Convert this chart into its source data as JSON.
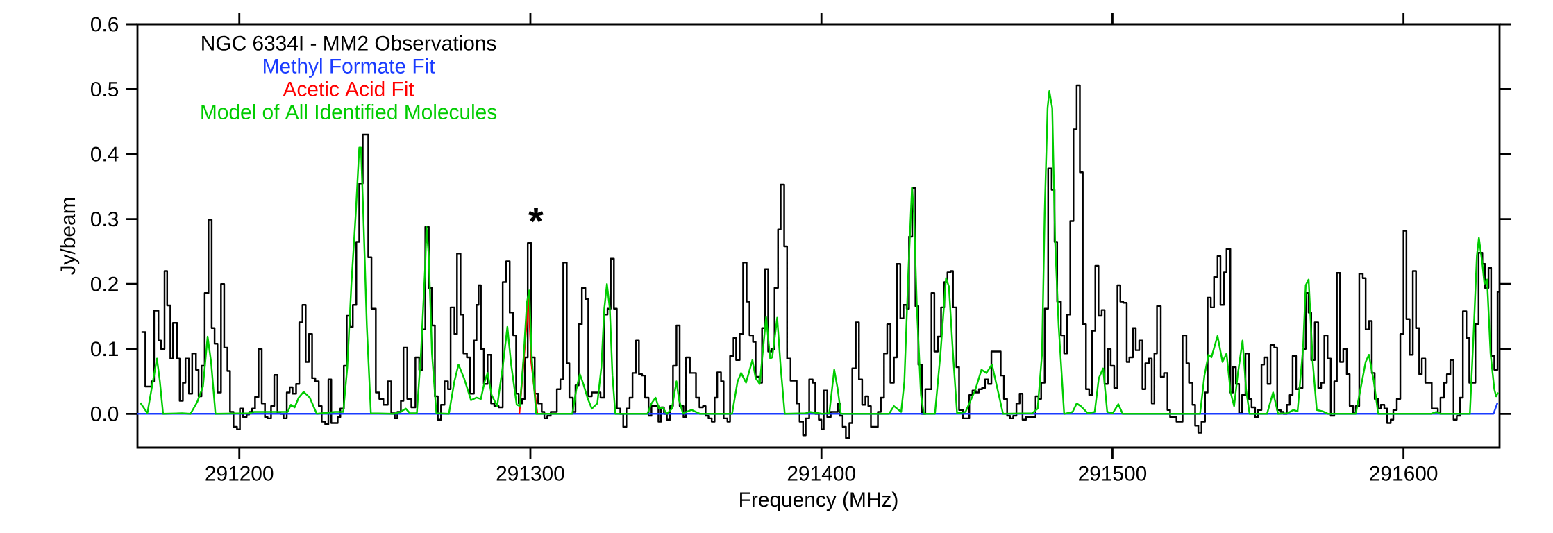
{
  "chart_data": {
    "type": "line",
    "xlabel": "Frequency (MHz)",
    "ylabel": "Jy/beam",
    "xlim": [
      291165,
      291633
    ],
    "ylim": [
      -0.052,
      0.6
    ],
    "xticks": [
      291200,
      291300,
      291400,
      291500,
      291600
    ],
    "yticks": [
      {
        "value": 0,
        "label": "0.0"
      },
      {
        "value": 0.1,
        "label": "0.1"
      },
      {
        "value": 0.2,
        "label": "0.2"
      },
      {
        "value": 0.3,
        "label": "0.3"
      },
      {
        "value": 0.4,
        "label": "0.4"
      },
      {
        "value": 0.5,
        "label": "0.5"
      },
      {
        "value": 0.6,
        "label": "0.6"
      }
    ],
    "legend": "top left",
    "annotations": [
      "*"
    ],
    "series": [
      {
        "name": "NGC 6334I - MM2 Observations",
        "color": "#000000",
        "type": "step",
        "x": [
          291166.4,
          291167.7,
          291169.8,
          291170.7,
          291172.2,
          291173.1,
          291174.3,
          291175.2,
          291176.3,
          291177.2,
          291178.6,
          291179.5,
          291180.6,
          291181.5,
          291182.7,
          291183.8,
          291185.1,
          291186.0,
          291187.0,
          291188.1,
          291189.4,
          291190.5,
          291191.5,
          291192.5,
          291193.7,
          291194.8,
          291195.9,
          291196.8,
          291198.0,
          291199.2,
          291200.2,
          291201.3,
          291202.5,
          291203.4,
          291204.4,
          291205.4,
          291206.6,
          291207.7,
          291208.8,
          291209.7,
          291210.9,
          291212.0,
          291213.1,
          291214.2,
          291215.2,
          291216.3,
          291217.3,
          291218.3,
          291219.5,
          291220.6,
          291221.7,
          291222.8,
          291223.9,
          291225.0,
          291226.1,
          291227.3,
          291228.3,
          291229.5,
          291230.6,
          291231.6,
          291233.8,
          291234.7,
          291235.9,
          291236.9,
          291238.1,
          291239.0,
          291240.2,
          291241.2,
          291242.4,
          291244.3,
          291245.4,
          291246.9,
          291248.1,
          291249.5,
          291251.0,
          291252.2,
          291253.4,
          291254.3,
          291255.5,
          291256.4,
          291257.7,
          291259.1,
          291260.5,
          291261.8,
          291262.9,
          291263.9,
          291265.1,
          291266.1,
          291267.2,
          291268.2,
          291269.3,
          291270.5,
          291271.7,
          291272.6,
          291273.9,
          291274.8,
          291276.0,
          291277.0,
          291278.2,
          291279.3,
          291280.6,
          291281.5,
          291282.2,
          291283.0,
          291284.0,
          291285.3,
          291286.5,
          291287.6,
          291289.1,
          291290.5,
          291291.7,
          291292.9,
          291294.1,
          291295.1,
          291296.0,
          291297.2,
          291298.1,
          291299.1,
          291300.3,
          291301.5,
          291302.7,
          291303.9,
          291304.8,
          291305.8,
          291307.0,
          291309.1,
          291310.3,
          291311.3,
          291312.5,
          291313.4,
          291314.6,
          291315.5,
          291316.6,
          291317.7,
          291318.9,
          291319.9,
          291321.1,
          291324.1,
          291325.4,
          291326.5,
          291327.6,
          291328.7,
          291329.7,
          291330.9,
          291331.9,
          291333.0,
          291334.1,
          291335.1,
          291336.3,
          291337.3,
          291338.4,
          291339.4,
          291340.6,
          291341.6,
          291344.0,
          291344.9,
          291345.9,
          291346.9,
          291348.0,
          291349.0,
          291350.2,
          291351.3,
          291352.6,
          291353.5,
          291354.8,
          291356.9,
          291358.1,
          291359.3,
          291360.2,
          291361.2,
          291362.3,
          291363.3,
          291364.2,
          291365.5,
          291366.4,
          291367.7,
          291368.6,
          291369.8,
          291370.7,
          291371.9,
          291373.1,
          291374.3,
          291375.3,
          291376.5,
          291377.4,
          291378.7,
          291379.6,
          291380.6,
          291381.7,
          291383.0,
          291383.9,
          291385.1,
          291386.0,
          291387.2,
          291388.2,
          291389.4,
          291391.5,
          291392.5,
          291393.7,
          291394.6,
          291395.8,
          291397.0,
          291397.9,
          291399.1,
          291400.0,
          291400.8,
          291402.0,
          291403.2,
          291405.6,
          291406.3,
          291407.3,
          291408.4,
          291409.6,
          291410.6,
          291411.8,
          291412.9,
          291414.0,
          291415.1,
          291416.1,
          291417.0,
          291419.4,
          291420.4,
          291421.5,
          291422.6,
          291423.7,
          291424.9,
          291425.9,
          291427.1,
          291428.2,
          291429.3,
          291430.1,
          291431.2,
          291432.3,
          291433.3,
          291434.5,
          291435.7,
          291437.8,
          291438.8,
          291440.0,
          291441.1,
          291442.2,
          291443.3,
          291444.4,
          291445.2,
          291446.4,
          291447.3,
          291448.6,
          291450.8,
          291451.9,
          291453.0,
          291454.1,
          291455.2,
          291456.2,
          291457.3,
          291458.4,
          291461.6,
          291462.7,
          291463.8,
          291464.8,
          291465.9,
          291467.0,
          291468.1,
          291469.1,
          291470.3,
          291473.6,
          291474.6,
          291475.5,
          291476.7,
          291477.9,
          291479.1,
          291480.1,
          291481.0,
          291482.3,
          291483.4,
          291484.4,
          291485.5,
          291486.6,
          291487.7,
          291488.8,
          291489.8,
          291490.9,
          291492.0,
          291493.0,
          291494.1,
          291495.2,
          291496.3,
          291497.3,
          291498.4,
          291499.4,
          291500.6,
          291501.7,
          291502.7,
          291503.7,
          291504.9,
          291505.8,
          291507.0,
          291508.0,
          291509.2,
          291510.3,
          291511.3,
          291512.5,
          291513.5,
          291514.4,
          291515.3,
          291516.6,
          291517.7,
          291518.9,
          291519.8,
          291522.0,
          291524.1,
          291525.4,
          291526.3,
          291527.5,
          291528.4,
          291529.5,
          291530.6,
          291531.8,
          291532.7,
          291533.8,
          291534.9,
          291536.1,
          291537.1,
          291538.3,
          291539.2,
          291540.5,
          291541.4,
          291542.4,
          291543.5,
          291544.5,
          291545.7,
          291546.9,
          291547.8,
          291549.0,
          291550.0,
          291551.2,
          291552.1,
          291553.3,
          291554.3,
          291555.6,
          291556.6,
          291557.8,
          291558.8,
          291559.9,
          291560.9,
          291561.9,
          291563.1,
          291564.2,
          291565.3,
          291566.4,
          291567.4,
          291568.3,
          291569.5,
          291570.7,
          291571.7,
          291572.8,
          291573.9,
          291575.0,
          291576.2,
          291577.1,
          291578.2,
          291579.3,
          291580.5,
          291581.5,
          291582.7,
          291583.6,
          291584.8,
          291586.0,
          291587.0,
          291588.1,
          291589.1,
          291590.1,
          291591.3,
          291592.2,
          291593.4,
          291594.4,
          291595.6,
          291596.5,
          291597.7,
          291598.9,
          291600.0,
          291601.0,
          291602.1,
          291603.2,
          291604.3,
          291605.4,
          291606.3,
          291607.5,
          291609.7,
          291611.8,
          291612.7,
          291613.9,
          291614.9,
          291616.1,
          291617.2,
          291618.3,
          291619.4,
          291620.4,
          291621.6,
          291622.6,
          291624.7,
          291625.8,
          291627.1,
          291628.0,
          291629.2,
          291630.1,
          291631.2,
          291632.3,
          291633.0
        ],
        "values": [
          0.126,
          0.042,
          0.05,
          0.159,
          0.113,
          0.1,
          0.22,
          0.167,
          0.085,
          0.14,
          0.085,
          0.02,
          0.048,
          0.085,
          0.031,
          0.093,
          0.068,
          0.027,
          0.074,
          0.186,
          0.299,
          0.132,
          0.108,
          0.033,
          0.2,
          0.102,
          0.066,
          0.003,
          -0.02,
          -0.024,
          0.008,
          -0.005,
          -0.001,
          0.003,
          0.008,
          0.026,
          0.1,
          0.016,
          -0.005,
          -0.007,
          0.012,
          0.06,
          0.001,
          0,
          -0.007,
          0.033,
          0.041,
          0.031,
          0.046,
          0.141,
          0.168,
          0.08,
          0.123,
          0.055,
          0.05,
          0.012,
          -0.012,
          -0.016,
          0.053,
          -0.014,
          -0.005,
          0.008,
          0.074,
          0.151,
          0.134,
          0.168,
          0.265,
          0.355,
          0.43,
          0.241,
          0.162,
          0.033,
          0.023,
          0.014,
          0.05,
          0.001,
          -0.007,
          0.003,
          0.02,
          0.102,
          0.023,
          0.01,
          0.087,
          0.068,
          0.13,
          0.288,
          0.194,
          0.136,
          0.027,
          -0.009,
          0.014,
          0.05,
          0.038,
          0.164,
          0.123,
          0.247,
          0.153,
          0.093,
          0.087,
          0.031,
          0.113,
          0.168,
          0.198,
          0.1,
          0.046,
          0.091,
          0.016,
          0.012,
          0.01,
          0.203,
          0.235,
          0.156,
          0.121,
          0.031,
          0.016,
          0.023,
          0.087,
          0.263,
          0.087,
          0.031,
          0.016,
          0.003,
          -0.007,
          -0.003,
          0.003,
          0.038,
          0.053,
          0.233,
          0.078,
          0.025,
          0.003,
          0.044,
          0.138,
          0.194,
          0.177,
          0.027,
          0.033,
          0.025,
          0.153,
          0.162,
          0.239,
          0.162,
          0.008,
          0,
          -0.02,
          0.008,
          0.025,
          0.063,
          0.113,
          0.061,
          0.059,
          0.025,
          -0.003,
          0.012,
          -0.012,
          0.01,
          0,
          -0.009,
          0.012,
          0.074,
          0.136,
          0.012,
          -0.005,
          0.087,
          0.063,
          0.025,
          0.01,
          0.012,
          -0.003,
          -0.007,
          -0.012,
          0.025,
          0.064,
          0.05,
          -0.007,
          -0.012,
          0.089,
          0.117,
          0.083,
          0.123,
          0.233,
          0.173,
          0.121,
          0.111,
          0.057,
          0.048,
          0.132,
          0.223,
          0.096,
          0.1,
          0.194,
          0.284,
          0.353,
          0.258,
          0.085,
          0.051,
          0.016,
          -0.012,
          -0.033,
          -0.007,
          0.053,
          0.048,
          0,
          -0.009,
          -0.024,
          0.036,
          -0.005,
          0.003,
          0.016,
          -0.003,
          -0.02,
          -0.037,
          -0.014,
          0.07,
          0.141,
          0.053,
          0.014,
          0.027,
          0.012,
          -0.02,
          0.003,
          0.025,
          0.093,
          0.138,
          0.048,
          0.087,
          0.231,
          0.147,
          0.168,
          0.162,
          0.273,
          0.348,
          0.166,
          0.076,
          0,
          0.038,
          0.186,
          0.096,
          0.119,
          0.164,
          0.203,
          0.218,
          0.22,
          0.164,
          0.072,
          0.006,
          -0.007,
          0.029,
          0.036,
          0.033,
          0.038,
          0.04,
          0.053,
          0.046,
          0.096,
          0.059,
          0.023,
          -0.003,
          -0.007,
          -0.003,
          0.016,
          0.031,
          -0.009,
          -0.005,
          0.027,
          0.023,
          0.048,
          0.162,
          0.378,
          0.345,
          0.265,
          0.173,
          0.121,
          0.093,
          0.153,
          0.297,
          0.438,
          0.506,
          0.372,
          0.138,
          0.038,
          0.029,
          0.128,
          0.228,
          0.151,
          0.16,
          0.046,
          0.1,
          0.074,
          0.04,
          0.198,
          0.173,
          0.171,
          0.08,
          0.087,
          0.132,
          0.098,
          0.113,
          0.038,
          0.078,
          0.085,
          0.016,
          0.093,
          0.166,
          0.057,
          0.063,
          0.006,
          -0.005,
          -0.012,
          0.121,
          0.078,
          0.048,
          0.014,
          -0.018,
          -0.029,
          -0.012,
          0.033,
          0.179,
          0.164,
          0.211,
          0.243,
          0.168,
          0.218,
          0.254,
          0.033,
          0.072,
          0.046,
          0.001,
          0.029,
          0.093,
          0.023,
          0.01,
          -0.005,
          0.006,
          0.076,
          0.087,
          0.046,
          0.106,
          0.102,
          0.006,
          0.003,
          0,
          0.014,
          0.029,
          0.089,
          0.038,
          0.04,
          0.1,
          0.186,
          0.156,
          0.083,
          0.141,
          0.04,
          0.048,
          0.121,
          0.085,
          -0.003,
          0.05,
          0.217,
          0.08,
          0.1,
          0.061,
          0.012,
          0.001,
          0.012,
          0.216,
          0.209,
          0.13,
          0.143,
          0.063,
          0.023,
          0.008,
          0.014,
          0.008,
          -0.014,
          -0.009,
          0.006,
          0.023,
          0.123,
          0.282,
          0.146,
          0.091,
          0.22,
          0.132,
          0.061,
          0.085,
          0.048,
          0.008,
          0.001,
          0.025,
          0.048,
          0.061,
          0.083,
          -0.009,
          -0.003,
          0.025,
          0.158,
          0.117,
          0.048,
          0.138,
          0.248,
          0.231,
          0.194,
          0.225,
          0.089,
          0.068,
          0.188,
          0.188
        ]
      },
      {
        "name": "Methyl Formate Fit",
        "color": "#1a3cff",
        "x": [
          291165,
          291630.9,
          291632.3
        ],
        "values": [
          0,
          0,
          0.017
        ]
      },
      {
        "name": "Acetic Acid Fit",
        "color": "#ff0000",
        "x": [
          291296.2,
          291297.9,
          291299.4,
          291300.3,
          291302.4
        ],
        "values": [
          0,
          0.093,
          0.181,
          0.08,
          0
        ]
      },
      {
        "name": "Model of All Identified Molecules",
        "color": "#00cc00",
        "x": [
          291166.0,
          291168.4,
          291170.3,
          291171.7,
          291172.7,
          291173.8,
          291180.3,
          291183.2,
          291185.5,
          291187.5,
          291189.1,
          291190.3,
          291191.8,
          291203.2,
          291205.1,
          291216.6,
          291217.7,
          291219.0,
          291220.4,
          291222.1,
          291224.2,
          291226.6,
          291232.8,
          291235.7,
          291237.1,
          291238.5,
          291240.0,
          291241.2,
          291241.8,
          291242.6,
          291243.8,
          291245.2,
          291252.9,
          291255.3,
          291257.2,
          291258.6,
          291261.0,
          291262.4,
          291263.9,
          291264.3,
          291265.1,
          291266.2,
          291267.7,
          291272.0,
          291273.9,
          291275.3,
          291277.2,
          291279.6,
          291281.5,
          291283.0,
          291284.3,
          291285.3,
          291286.7,
          291288.6,
          291290.5,
          291292.1,
          291293.4,
          291295.3,
          291296.4,
          291297.7,
          291298.8,
          291299.6,
          291300.5,
          291302.0,
          291314.4,
          291315.8,
          291317.0,
          291318.2,
          291319.6,
          291321.1,
          291323.0,
          291324.4,
          291325.4,
          291326.3,
          291327.3,
          291328.2,
          291329.2,
          291340.2,
          291341.6,
          291343.0,
          291344.2,
          291345.4,
          291346.9,
          291348.6,
          291350.2,
          291351.1,
          291352.4,
          291355.4,
          291358.3,
          291369.3,
          291371.2,
          291372.4,
          291374.1,
          291376.3,
          291377.4,
          291378.8,
          291381.0,
          291382.4,
          291383.1,
          291384.8,
          291386.0,
          291387.4,
          291394.6,
          291396.0,
          291400.3,
          291402.7,
          291404.4,
          291405.6,
          291406.7,
          291423.2,
          291424.9,
          291427.4,
          291428.5,
          291429.9,
          291431.1,
          291431.8,
          291432.8,
          291434.2,
          291435.2,
          291439.0,
          291440.9,
          291442.8,
          291443.8,
          291445.2,
          291446.6,
          291449.5,
          291452.8,
          291455.0,
          291456.7,
          291458.6,
          291460.5,
          291462.4,
          291472.4,
          291474.3,
          291475.8,
          291476.7,
          291477.7,
          291478.3,
          291479.3,
          291480.3,
          291481.5,
          291483.4,
          291486.3,
          291487.7,
          291489.1,
          291491.5,
          291493.9,
          291495.3,
          291496.8,
          291498.2,
          291500.1,
          291502.0,
          291503.5,
          291530.1,
          291531.6,
          291533.0,
          291534.0,
          291536.1,
          291537.8,
          291539.2,
          291540.6,
          291541.8,
          291543.0,
          291544.7,
          291545.9,
          291547.1,
          291553.1,
          291555.2,
          291556.9,
          291560.2,
          291562.1,
          291563.6,
          291565.5,
          291566.4,
          291567.4,
          291568.8,
          291570.2,
          291572.2,
          291574.1,
          291583.6,
          291585.0,
          291587.0,
          291588.1,
          291589.8,
          291591.3,
          291609.4,
          291611.3,
          291612.7,
          291622.8,
          291624.2,
          291625.2,
          291625.9,
          291627.1,
          291627.8,
          291628.7,
          291629.9,
          291631.2,
          291631.8,
          291632.5
        ],
        "values": [
          0.017,
          0.001,
          0.05,
          0.085,
          0.05,
          0,
          0.001,
          0,
          0.018,
          0.042,
          0.119,
          0.08,
          0,
          0.001,
          0.003,
          0.003,
          0.014,
          0.01,
          0.025,
          0.034,
          0.025,
          0,
          0.003,
          0.003,
          0.072,
          0.2,
          0.308,
          0.41,
          0.41,
          0.308,
          0.136,
          0.001,
          0,
          0.003,
          0.008,
          0.001,
          0.001,
          0.093,
          0.231,
          0.288,
          0.243,
          0.093,
          0.001,
          0,
          0.05,
          0.076,
          0.055,
          0.021,
          0.025,
          0.023,
          0.05,
          0.063,
          0.029,
          0.012,
          0.072,
          0.134,
          0.076,
          0.014,
          0.012,
          0.089,
          0.171,
          0.19,
          0.085,
          0,
          0,
          0.038,
          0.061,
          0.046,
          0.025,
          0.008,
          0.016,
          0.072,
          0.162,
          0.2,
          0.162,
          0.059,
          0,
          0,
          0.016,
          0.025,
          0.008,
          0.01,
          0,
          0.008,
          0.05,
          0.021,
          0.001,
          0.006,
          0,
          0,
          0.05,
          0.063,
          0.048,
          0.083,
          0.055,
          0.046,
          0.149,
          0.085,
          0.087,
          0.148,
          0.072,
          0,
          0.001,
          0.003,
          0,
          0.001,
          0.068,
          0.038,
          0,
          0,
          0.012,
          0.003,
          0.05,
          0.222,
          0.348,
          0.308,
          0.162,
          0.029,
          0,
          0,
          0.093,
          0.209,
          0.196,
          0.093,
          0.001,
          0.003,
          0.036,
          0.068,
          0.063,
          0.076,
          0.038,
          0,
          0.001,
          0.008,
          0.093,
          0.308,
          0.471,
          0.497,
          0.471,
          0.265,
          0.136,
          0,
          0.003,
          0.016,
          0.012,
          0.001,
          0.003,
          0.055,
          0.07,
          0.003,
          0.001,
          0.015,
          0,
          0,
          0.059,
          0.091,
          0.087,
          0.12,
          0.08,
          0.093,
          0.033,
          0.012,
          0.059,
          0.113,
          0.038,
          0,
          0,
          0.033,
          0,
          0.001,
          0.006,
          0.004,
          0.102,
          0.198,
          0.207,
          0.08,
          0.006,
          0.004,
          0,
          0,
          0.033,
          0.08,
          0.091,
          0.05,
          0,
          0,
          0.003,
          0,
          0,
          0.136,
          0.243,
          0.271,
          0.231,
          0.2,
          0.207,
          0.093,
          0.038,
          0.027,
          0.033
        ]
      }
    ]
  }
}
